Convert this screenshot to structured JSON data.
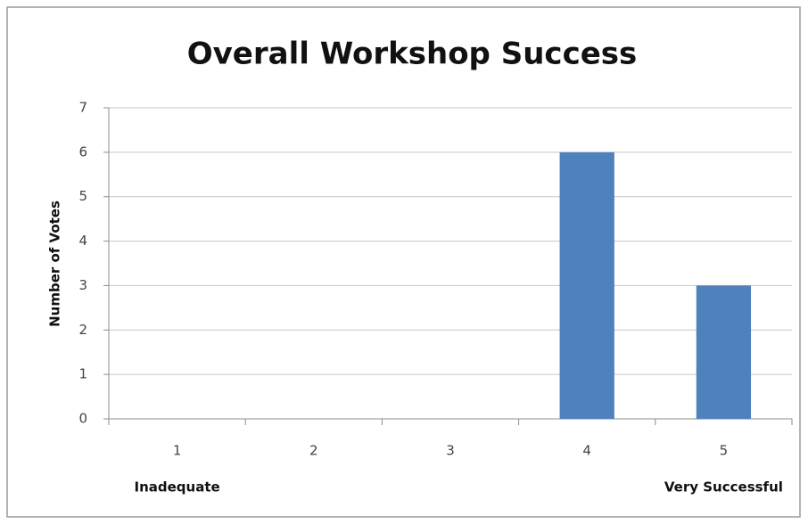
{
  "chart_data": {
    "type": "bar",
    "title": "Overall Workshop Success",
    "y_label": "Number of Votes",
    "categories": [
      "1",
      "2",
      "3",
      "4",
      "5"
    ],
    "values": [
      0,
      0,
      0,
      6,
      3
    ],
    "color": "#4f81bd",
    "ylim": [
      0,
      7
    ],
    "yticks": [
      0,
      1,
      2,
      3,
      4,
      5,
      6,
      7
    ],
    "grid": true,
    "annotations": [
      "Inadequate",
      "Very Successful"
    ]
  }
}
